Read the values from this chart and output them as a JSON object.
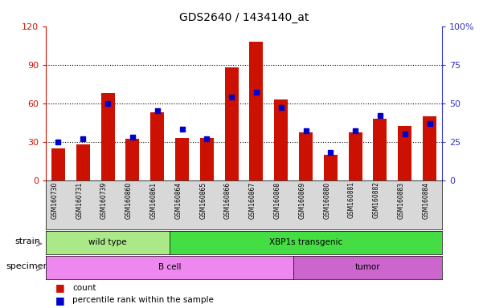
{
  "title": "GDS2640 / 1434140_at",
  "samples": [
    "GSM160730",
    "GSM160731",
    "GSM160739",
    "GSM160860",
    "GSM160861",
    "GSM160864",
    "GSM160865",
    "GSM160866",
    "GSM160867",
    "GSM160868",
    "GSM160869",
    "GSM160880",
    "GSM160881",
    "GSM160882",
    "GSM160883",
    "GSM160884"
  ],
  "counts": [
    25,
    28,
    68,
    32,
    53,
    33,
    33,
    88,
    108,
    63,
    37,
    20,
    37,
    48,
    42,
    50
  ],
  "percentiles": [
    25,
    27,
    50,
    28,
    45,
    33,
    27,
    54,
    57,
    47,
    32,
    18,
    32,
    42,
    30,
    37
  ],
  "ylim_left": [
    0,
    120
  ],
  "ylim_right": [
    0,
    100
  ],
  "yticks_left": [
    0,
    30,
    60,
    90,
    120
  ],
  "yticks_right": [
    0,
    25,
    50,
    75,
    100
  ],
  "yticklabels_right": [
    "0",
    "25",
    "50",
    "75",
    "100%"
  ],
  "bar_color": "#cc1100",
  "dot_color": "#0000cc",
  "bg_color": "#d8d8d8",
  "strain_groups": [
    {
      "label": "wild type",
      "start": 0,
      "end": 5,
      "color": "#aae888"
    },
    {
      "label": "XBP1s transgenic",
      "start": 5,
      "end": 16,
      "color": "#44dd44"
    }
  ],
  "specimen_groups": [
    {
      "label": "B cell",
      "start": 0,
      "end": 10,
      "color": "#ee88ee"
    },
    {
      "label": "tumor",
      "start": 10,
      "end": 16,
      "color": "#cc66cc"
    }
  ],
  "left_tick_color": "#cc1100",
  "right_tick_color": "#3333cc",
  "grid_dotted_at": [
    30,
    60,
    90
  ]
}
